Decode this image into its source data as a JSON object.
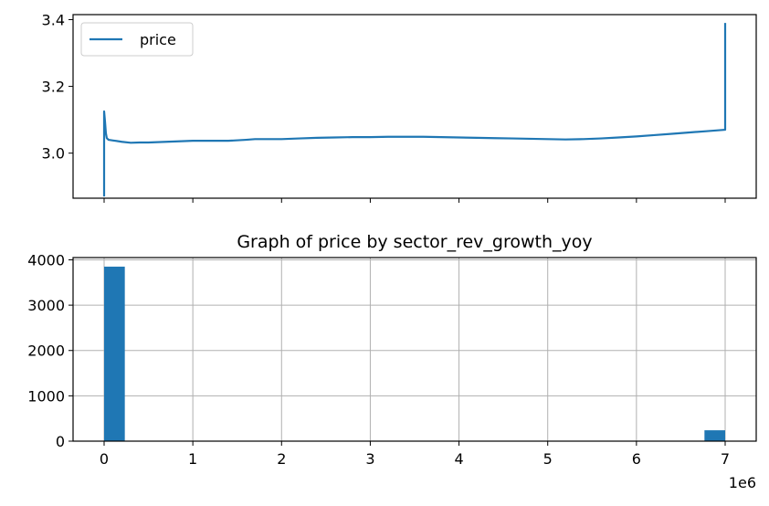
{
  "chart_data": [
    {
      "type": "line",
      "title": "",
      "xlabel": "",
      "ylabel": "",
      "legend": {
        "placement": "top-left",
        "entries": [
          "price"
        ]
      },
      "grid": false,
      "sharex_with_lower": true,
      "xlim": [
        -350000,
        7350000
      ],
      "ylim": [
        2.865,
        3.415
      ],
      "yticks": [
        3.0,
        3.2,
        3.4
      ],
      "ytick_labels": [
        "3.0",
        "3.2",
        "3.4"
      ],
      "xticks": [
        0,
        1000000,
        2000000,
        3000000,
        4000000,
        5000000,
        6000000,
        7000000
      ],
      "colors": {
        "line": "#1f77b4",
        "axis": "#000000"
      },
      "series": [
        {
          "name": "price",
          "x": [
            0,
            0,
            10000,
            20000,
            30000,
            50000,
            100000,
            200000,
            300000,
            400000,
            500000,
            600000,
            700000,
            800000,
            900000,
            1000000,
            1200000,
            1400000,
            1600000,
            1700000,
            1800000,
            2000000,
            2200000,
            2400000,
            2600000,
            2800000,
            3000000,
            3200000,
            3400000,
            3600000,
            3800000,
            4000000,
            4200000,
            4400000,
            4600000,
            4800000,
            5000000,
            5200000,
            5400000,
            5600000,
            5800000,
            6000000,
            6200000,
            6400000,
            6600000,
            6800000,
            7000000,
            7000000
          ],
          "y": [
            2.87,
            3.125,
            3.095,
            3.06,
            3.045,
            3.04,
            3.038,
            3.034,
            3.031,
            3.032,
            3.032,
            3.033,
            3.034,
            3.035,
            3.036,
            3.037,
            3.037,
            3.037,
            3.04,
            3.042,
            3.042,
            3.042,
            3.044,
            3.046,
            3.047,
            3.048,
            3.048,
            3.049,
            3.049,
            3.049,
            3.048,
            3.047,
            3.046,
            3.045,
            3.044,
            3.043,
            3.042,
            3.041,
            3.042,
            3.044,
            3.047,
            3.05,
            3.054,
            3.058,
            3.062,
            3.066,
            3.07,
            3.39
          ]
        }
      ]
    },
    {
      "type": "bar",
      "title": "Graph of price by sector_rev_growth_yoy",
      "xlabel": "",
      "ylabel": "",
      "grid": true,
      "xlim": [
        -350000,
        7350000
      ],
      "ylim": [
        0,
        4050
      ],
      "xticks": [
        0,
        1000000,
        2000000,
        3000000,
        4000000,
        5000000,
        6000000,
        7000000
      ],
      "xtick_labels": [
        "0",
        "1",
        "2",
        "3",
        "4",
        "5",
        "6",
        "7"
      ],
      "x_offset_label": "1e6",
      "yticks": [
        0,
        1000,
        2000,
        3000,
        4000
      ],
      "ytick_labels": [
        "0",
        "1000",
        "2000",
        "3000",
        "4000"
      ],
      "colors": {
        "bar": "#1f77b4",
        "grid": "#b0b0b0",
        "axis": "#000000"
      },
      "bins": [
        {
          "x0": 0,
          "x1": 233333,
          "value": 3850
        },
        {
          "x0": 6766667,
          "x1": 7000000,
          "value": 240
        }
      ]
    }
  ]
}
